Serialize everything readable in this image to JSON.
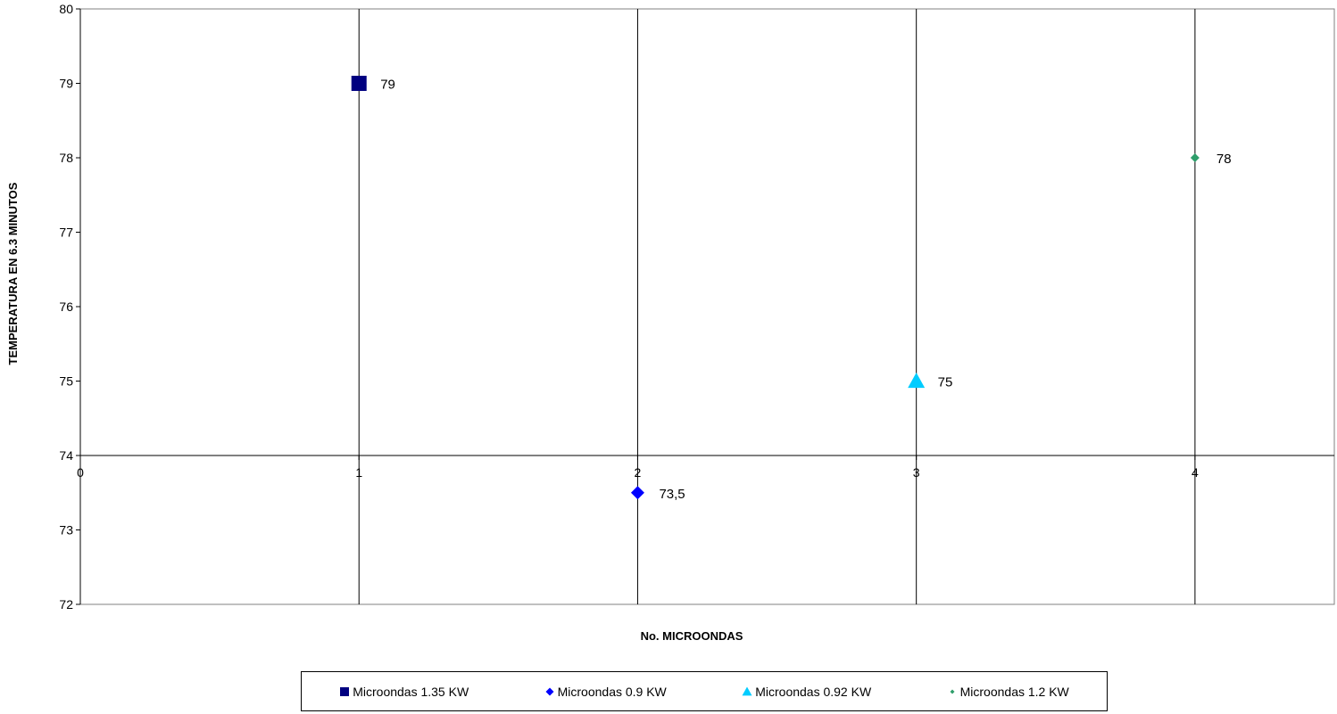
{
  "chart_data": {
    "type": "scatter",
    "xlabel": "No. MICROONDAS",
    "ylabel": "TEMPERATURA EN 6.3 MINUTOS",
    "xlim": [
      0,
      4.5
    ],
    "ylim": [
      72,
      80
    ],
    "x_axis_crosses_y_at": 74,
    "x_ticks": [
      "0",
      "1",
      "2",
      "3",
      "4"
    ],
    "y_ticks": [
      "72",
      "73",
      "74",
      "75",
      "76",
      "77",
      "78",
      "79",
      "80"
    ],
    "grid": "vertical major gridlines",
    "legend_position": "bottom",
    "series": [
      {
        "name": "Microondas 1.35 KW",
        "marker": "square",
        "color": "#000080",
        "x": [
          1
        ],
        "y": [
          79
        ],
        "labels": [
          "79"
        ]
      },
      {
        "name": "Microondas 0.9 KW",
        "marker": "diamond",
        "color": "#0000ff",
        "x": [
          2
        ],
        "y": [
          73.5
        ],
        "labels": [
          "73,5"
        ]
      },
      {
        "name": "Microondas 0.92 KW",
        "marker": "triangle",
        "color": "#00ccff",
        "x": [
          3
        ],
        "y": [
          75
        ],
        "labels": [
          "75"
        ]
      },
      {
        "name": "Microondas 1.2 KW",
        "marker": "diamond",
        "color": "#2e9e6b",
        "x": [
          4
        ],
        "y": [
          78
        ],
        "labels": [
          "78"
        ]
      }
    ]
  }
}
